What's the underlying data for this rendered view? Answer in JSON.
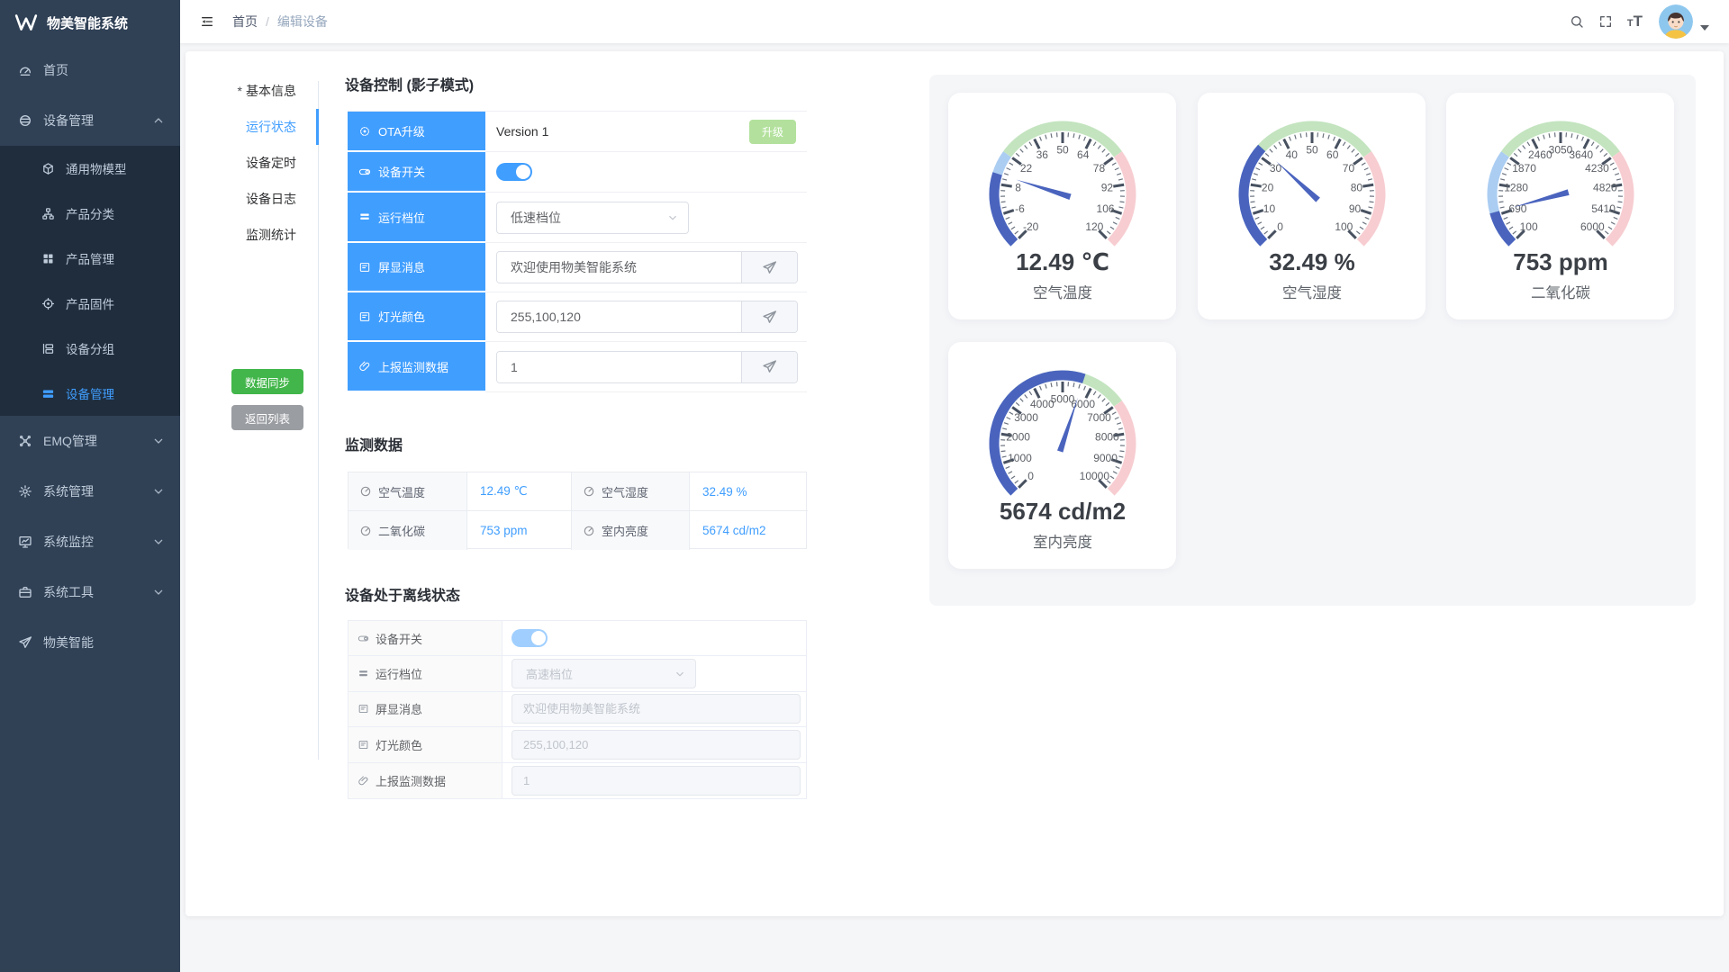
{
  "app": {
    "name": "物美智能系统"
  },
  "topbar": {
    "breadcrumb": {
      "home": "首页",
      "separator": "/",
      "current": "编辑设备"
    }
  },
  "sidebar": {
    "items": [
      {
        "label": "首页",
        "icon": "dashboard-icon"
      },
      {
        "label": "设备管理",
        "icon": "devices-icon",
        "expanded": true,
        "children": [
          {
            "label": "通用物模型",
            "icon": "cube-icon"
          },
          {
            "label": "产品分类",
            "icon": "category-icon"
          },
          {
            "label": "产品管理",
            "icon": "grid-icon"
          },
          {
            "label": "产品固件",
            "icon": "firmware-icon"
          },
          {
            "label": "设备分组",
            "icon": "group-icon"
          },
          {
            "label": "设备管理",
            "icon": "bars-icon",
            "active": true
          }
        ]
      },
      {
        "label": "EMQ管理",
        "icon": "emq-icon",
        "expanded": false
      },
      {
        "label": "系统管理",
        "icon": "gear-icon",
        "expanded": false
      },
      {
        "label": "系统监控",
        "icon": "monitor-icon",
        "expanded": false
      },
      {
        "label": "系统工具",
        "icon": "toolbox-icon",
        "expanded": false
      },
      {
        "label": "物美智能",
        "icon": "plane-icon"
      }
    ]
  },
  "tabs": {
    "items": [
      {
        "label": "基本信息",
        "required_mark": "*"
      },
      {
        "label": "运行状态",
        "active": true
      },
      {
        "label": "设备定时"
      },
      {
        "label": "设备日志"
      },
      {
        "label": "监测统计"
      }
    ]
  },
  "actions": {
    "sync": "数据同步",
    "back": "返回列表"
  },
  "control": {
    "title": "设备控制 (影子模式)",
    "rows": [
      {
        "label": "OTA升级",
        "icon": "ota-icon",
        "value": "Version 1",
        "button": "升级"
      },
      {
        "label": "设备开关",
        "icon": "switch-icon",
        "state": "on"
      },
      {
        "label": "运行档位",
        "icon": "levels-icon",
        "value": "低速档位"
      },
      {
        "label": "屏显消息",
        "icon": "screen-icon",
        "value": "欢迎使用物美智能系统"
      },
      {
        "label": "灯光颜色",
        "icon": "screen-icon",
        "value": "255,100,120"
      },
      {
        "label": "上报监测数据",
        "icon": "paperclip-icon",
        "value": "1"
      }
    ]
  },
  "monitor": {
    "title": "监测数据",
    "cells": [
      {
        "label": "空气温度",
        "value": "12.49 ℃"
      },
      {
        "label": "空气湿度",
        "value": "32.49 %"
      },
      {
        "label": "二氧化碳",
        "value": "753 ppm"
      },
      {
        "label": "室内亮度",
        "value": "5674 cd/m2"
      }
    ]
  },
  "offline": {
    "title": "设备处于离线状态",
    "rows": [
      {
        "label": "设备开关",
        "icon": "switch-icon",
        "state": "on-disabled"
      },
      {
        "label": "运行档位",
        "icon": "levels-icon",
        "value": "高速档位"
      },
      {
        "label": "屏显消息",
        "icon": "screen-icon",
        "placeholder": "欢迎使用物美智能系统"
      },
      {
        "label": "灯光颜色",
        "icon": "screen-icon",
        "placeholder": "255,100,120"
      },
      {
        "label": "上报监测数据",
        "icon": "paperclip-icon",
        "placeholder": "1"
      }
    ]
  },
  "theme": {
    "primary": "#409eff",
    "sidebar_bg": "#304156",
    "submenu_bg": "#1f2d3d",
    "sync_green": "#42b64a",
    "back_gray": "#9a9da2",
    "upgrade_green": "#b3e19d",
    "gauge_progress": "#4a64be",
    "gauge_zone_low": "#abcdf2",
    "gauge_zone_mid": "#c3e4bf",
    "gauge_zone_high": "#f7cdd1"
  },
  "chart_data": [
    {
      "type": "gauge",
      "title": "空气温度",
      "value": 12.49,
      "unit": "℃",
      "value_display": "12.49 ℃",
      "min": -20,
      "max": 120,
      "tick_labels": [
        "-20",
        "-6",
        "8",
        "22",
        "36",
        "50",
        "64",
        "78",
        "92",
        "106",
        "120"
      ],
      "zones": [
        [
          0.3,
          "#abcdf2"
        ],
        [
          0.7,
          "#c3e4bf"
        ],
        [
          1,
          "#f7cdd1"
        ]
      ],
      "progress_color": "#4a64be",
      "start_angle": 225,
      "sweep": 270
    },
    {
      "type": "gauge",
      "title": "空气湿度",
      "value": 32.49,
      "unit": "%",
      "value_display": "32.49 %",
      "min": 0,
      "max": 100,
      "tick_labels": [
        "0",
        "10",
        "20",
        "30",
        "40",
        "50",
        "60",
        "70",
        "80",
        "90",
        "100"
      ],
      "zones": [
        [
          0.3,
          "#abcdf2"
        ],
        [
          0.7,
          "#c3e4bf"
        ],
        [
          1,
          "#f7cdd1"
        ]
      ],
      "progress_color": "#4a64be",
      "start_angle": 225,
      "sweep": 270
    },
    {
      "type": "gauge",
      "title": "二氧化碳",
      "value": 753,
      "unit": "ppm",
      "value_display": "753 ppm",
      "min": 100,
      "max": 6000,
      "tick_labels": [
        "100",
        "690",
        "1280",
        "1870",
        "2460",
        "3050",
        "3640",
        "4230",
        "4820",
        "5410",
        "6000"
      ],
      "zones": [
        [
          0.3,
          "#abcdf2"
        ],
        [
          0.7,
          "#c3e4bf"
        ],
        [
          1,
          "#f7cdd1"
        ]
      ],
      "progress_color": "#4a64be",
      "start_angle": 225,
      "sweep": 270
    },
    {
      "type": "gauge",
      "title": "室内亮度",
      "value": 5674,
      "unit": "cd/m2",
      "value_display": "5674 cd/m2",
      "min": 0,
      "max": 10000,
      "tick_labels": [
        "0",
        "1000",
        "2000",
        "3000",
        "4000",
        "5000",
        "6000",
        "7000",
        "8000",
        "9000",
        "10000"
      ],
      "zones": [
        [
          0.3,
          "#abcdf2"
        ],
        [
          0.7,
          "#c3e4bf"
        ],
        [
          1,
          "#f7cdd1"
        ]
      ],
      "progress_color": "#4a64be",
      "start_angle": 225,
      "sweep": 270
    }
  ]
}
